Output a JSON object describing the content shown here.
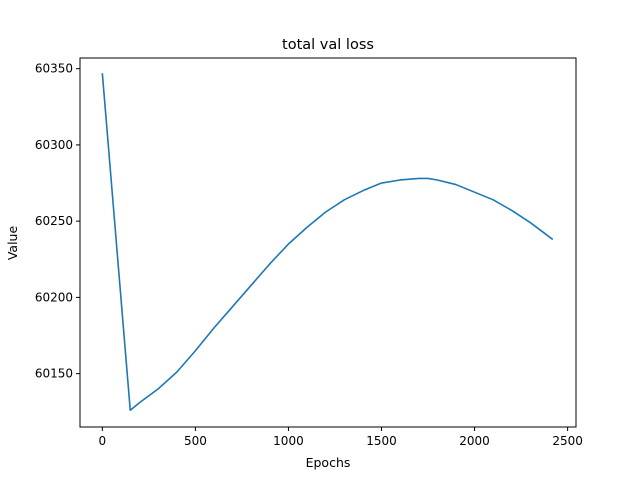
{
  "chart_data": {
    "type": "line",
    "title": "total val loss",
    "xlabel": "Epochs",
    "ylabel": "Value",
    "xlim": [
      -120,
      2545
    ],
    "ylim": [
      60115,
      60357
    ],
    "xticks": [
      0,
      500,
      1000,
      1500,
      2000,
      2500
    ],
    "yticks": [
      60150,
      60200,
      60250,
      60300,
      60350
    ],
    "grid": false,
    "line_color": "#1f77b4",
    "series": [
      {
        "x": [
          0,
          150,
          200,
          300,
          400,
          500,
          600,
          700,
          800,
          900,
          1000,
          1100,
          1200,
          1300,
          1400,
          1500,
          1600,
          1700,
          1750,
          1800,
          1900,
          2000,
          2100,
          2200,
          2300,
          2420
        ],
        "y": [
          60347,
          60126,
          60131,
          60140,
          60151,
          60165,
          60180,
          60194,
          60208,
          60222,
          60235,
          60246,
          60256,
          60264,
          60270,
          60275,
          60277,
          60278,
          60278,
          60277,
          60274,
          60269,
          60264,
          60257,
          60249,
          60238
        ]
      }
    ]
  }
}
